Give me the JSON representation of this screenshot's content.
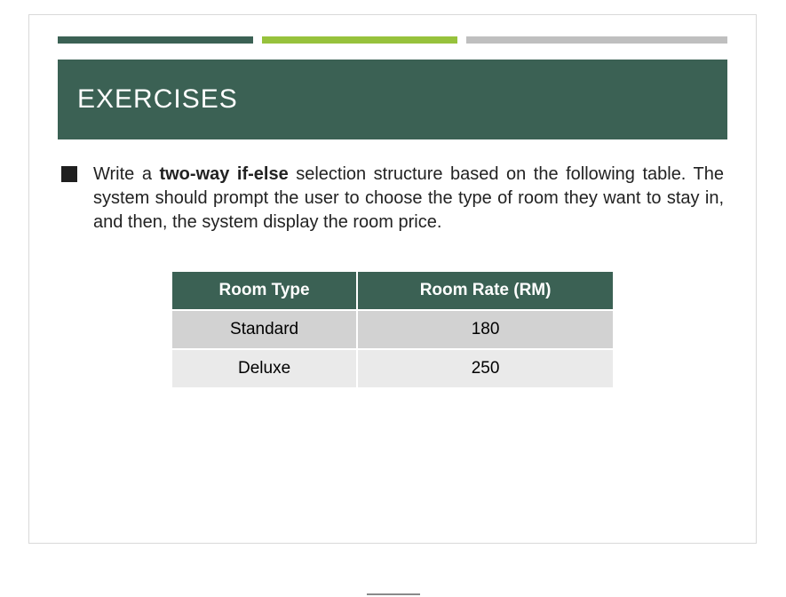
{
  "colors": {
    "dark_green": "#3b6154",
    "lime_green": "#97c23c",
    "grey": "#bfbfbf",
    "row_alt_a": "#d2d2d2",
    "row_alt_b": "#eaeaea"
  },
  "accent_bar": {
    "segments": [
      {
        "color": "#3b6154",
        "width_pct": 30
      },
      {
        "color": "#97c23c",
        "width_pct": 30
      },
      {
        "color": "#bfbfbf",
        "width_pct": 40
      }
    ]
  },
  "title": {
    "text": "EXERCISES",
    "band_color": "#3b6154"
  },
  "body": {
    "prefix": "Write a ",
    "bold": "two-way if-else",
    "suffix": " selection structure based on the following table. The system should prompt the user to choose the type of room they want to stay in, and then, the system display the room price."
  },
  "table": {
    "header_bg": "#3b6154",
    "columns": [
      "Room Type",
      "Room Rate (RM)"
    ],
    "rows": [
      {
        "cells": [
          "Standard",
          "180"
        ],
        "bg": "#d2d2d2"
      },
      {
        "cells": [
          "Deluxe",
          "250"
        ],
        "bg": "#eaeaea"
      }
    ]
  }
}
